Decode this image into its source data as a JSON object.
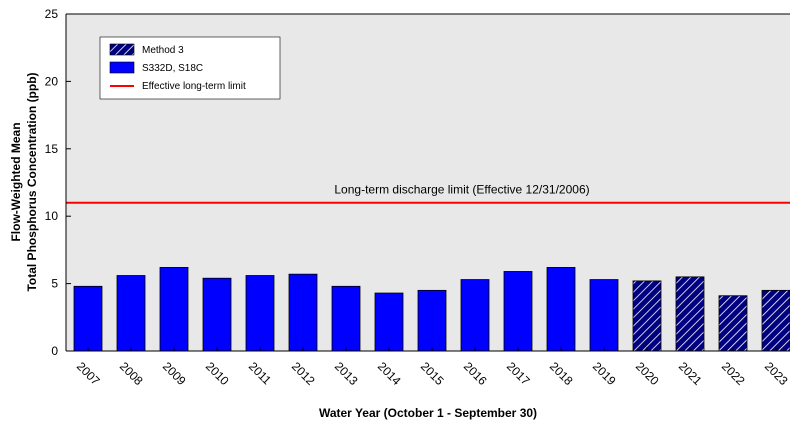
{
  "chart_data": {
    "type": "bar",
    "categories": [
      "2007",
      "2008",
      "2009",
      "2010",
      "2011",
      "2012",
      "2013",
      "2014",
      "2015",
      "2016",
      "2017",
      "2018",
      "2019",
      "2020",
      "2021",
      "2022",
      "2023"
    ],
    "series": [
      {
        "name": "S332D, S18C",
        "values": [
          4.8,
          5.6,
          6.2,
          5.4,
          5.6,
          5.7,
          4.8,
          4.3,
          4.5,
          5.3,
          5.9,
          6.2,
          5.3,
          null,
          null,
          null,
          null
        ],
        "color": "#0000ff"
      },
      {
        "name": "Method 3",
        "values": [
          null,
          null,
          null,
          null,
          null,
          null,
          null,
          null,
          null,
          null,
          null,
          null,
          null,
          5.2,
          5.5,
          4.1,
          4.5
        ],
        "color": "#000080",
        "pattern": "hatched"
      }
    ],
    "ylim": [
      0,
      25
    ],
    "yticks": [
      0,
      5,
      10,
      15,
      20,
      25
    ],
    "xlabel": "Water Year (October 1 - September 30)",
    "ylabel_line1": "Flow-Weighted Mean",
    "ylabel_line2": "Total Phosphorus Concentration (ppb)",
    "reference_line": {
      "value": 11,
      "color": "#ff0000",
      "legend": "Effective long-term limit",
      "annotation": "Long-term discharge limit (Effective 12/31/2006)"
    },
    "legend_position": "top-left",
    "grid": false,
    "background_color": "#e8e8e8"
  }
}
